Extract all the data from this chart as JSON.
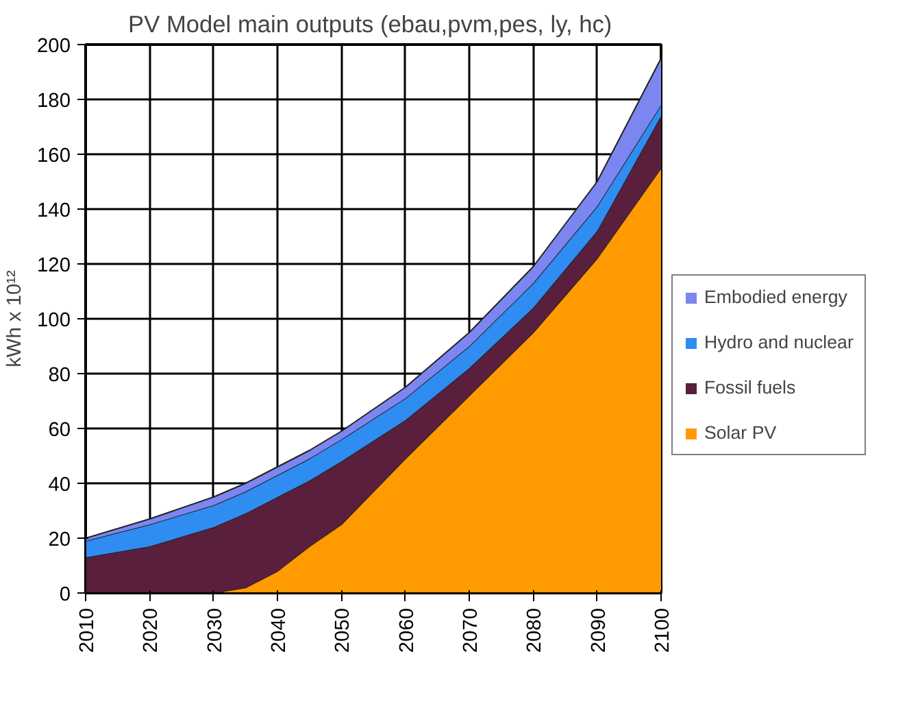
{
  "chart_data": {
    "type": "area",
    "stacked": true,
    "title": "PV Model main  outputs (ebau,pvm,pes, ly, hc)",
    "ylabel": "kWh x 10¹²",
    "x": [
      2010,
      2020,
      2030,
      2035,
      2040,
      2045,
      2050,
      2060,
      2070,
      2080,
      2090,
      2100
    ],
    "xlim": [
      2010,
      2100
    ],
    "xticks": [
      2010,
      2020,
      2030,
      2040,
      2050,
      2060,
      2070,
      2080,
      2090,
      2100
    ],
    "ylim": [
      0,
      200
    ],
    "yticks": [
      0,
      20,
      40,
      60,
      80,
      100,
      120,
      140,
      160,
      180,
      200
    ],
    "grid": true,
    "legend": "right",
    "series": [
      {
        "name": "Solar PV",
        "color": "#ff9a00",
        "values": [
          0,
          0,
          0,
          2,
          8,
          17,
          25,
          49,
          72,
          95,
          122,
          155
        ]
      },
      {
        "name": "Fossil fuels",
        "color": "#5a1f3c",
        "values": [
          13,
          17,
          24,
          27,
          27,
          24,
          23,
          14,
          10,
          9,
          10,
          19
        ]
      },
      {
        "name": "Hydro and nuclear",
        "color": "#2f8cf0",
        "values": [
          6,
          8,
          8,
          8,
          8,
          8,
          8,
          8,
          8,
          9,
          9,
          4
        ]
      },
      {
        "name": "Embodied energy",
        "color": "#7b86f0",
        "values": [
          1,
          2,
          3,
          3,
          3,
          3,
          3,
          4,
          5,
          6,
          9,
          17
        ]
      }
    ]
  }
}
